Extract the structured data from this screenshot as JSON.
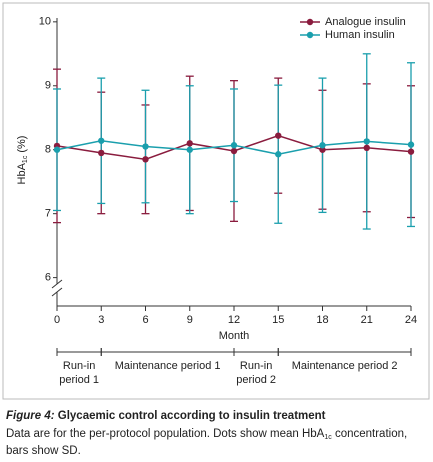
{
  "chart_data": {
    "type": "errorbar-line",
    "x_label": "Month",
    "y_label": {
      "main": "HbA",
      "sub": "1c",
      "rest": " (%)"
    },
    "xlim": [
      0,
      24
    ],
    "xticks": [
      0,
      3,
      6,
      9,
      12,
      15,
      18,
      21,
      24
    ],
    "ylim": [
      5.65,
      10.06
    ],
    "yticks": [
      6,
      7,
      8,
      9,
      10
    ],
    "legend": "top-right",
    "x": [
      0,
      3,
      6,
      9,
      12,
      15,
      18,
      21,
      24
    ],
    "series": [
      {
        "name": "Analogue insulin",
        "color": "#8a1c3e",
        "values": [
          8.06,
          7.95,
          7.85,
          8.1,
          7.98,
          8.22,
          8.0,
          8.03,
          7.97
        ],
        "errors": [
          1.2,
          0.95,
          0.85,
          1.05,
          1.1,
          0.9,
          0.93,
          1.0,
          1.03
        ]
      },
      {
        "name": "Human insulin",
        "color": "#1a9fad",
        "values": [
          8.0,
          8.14,
          8.05,
          8.0,
          8.07,
          7.93,
          8.07,
          8.13,
          8.08
        ],
        "errors": [
          0.95,
          0.98,
          0.88,
          1.0,
          0.88,
          1.08,
          1.05,
          1.37,
          1.28
        ]
      }
    ],
    "periods": [
      {
        "lines": [
          "Run-in",
          "period 1"
        ],
        "start": 0,
        "end": 3
      },
      {
        "lines": [
          "Maintenance period 1"
        ],
        "start": 3,
        "end": 12
      },
      {
        "lines": [
          "Run-in",
          "period 2"
        ],
        "start": 12,
        "end": 15
      },
      {
        "lines": [
          "Maintenance period 2"
        ],
        "start": 15,
        "end": 24
      }
    ]
  },
  "caption": {
    "figure_label": "Figure 4:",
    "title": " Glycaemic control according to insulin treatment",
    "line1": {
      "a": "Data are for the per-protocol population. Dots show mean HbA",
      "sub": "1c",
      "b": " concentration,"
    },
    "line2": "bars show SD."
  }
}
